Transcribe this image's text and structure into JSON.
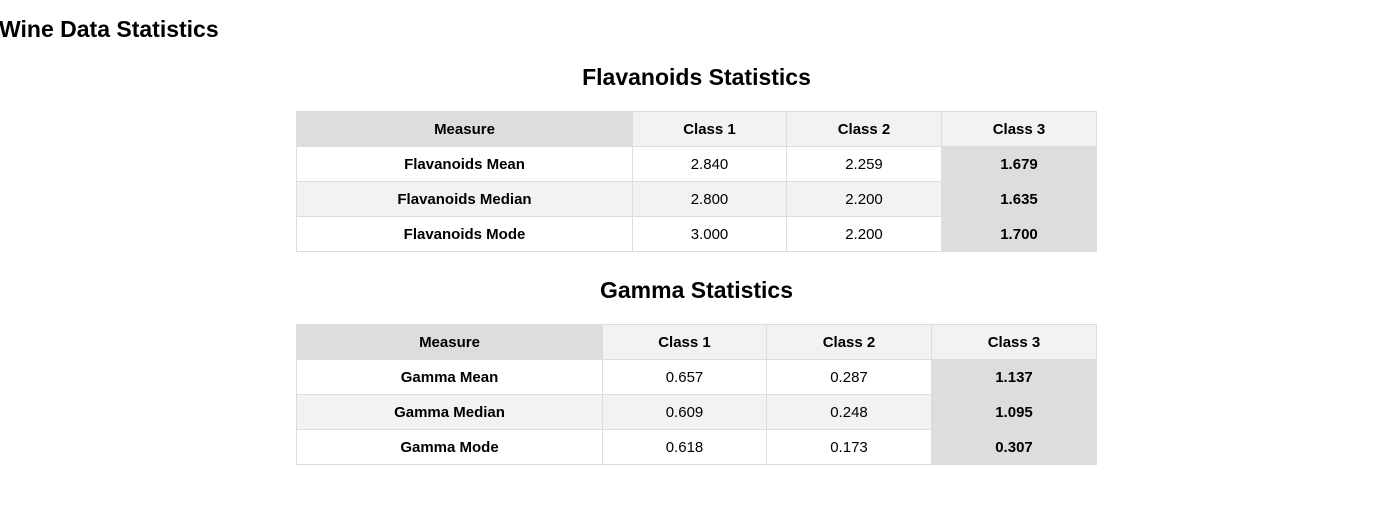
{
  "page_title": "Wine Data Statistics",
  "flavanoids": {
    "title": "Flavanoids Statistics",
    "headers": [
      "Measure",
      "Class 1",
      "Class 2",
      "Class 3"
    ],
    "rows": [
      {
        "measure": "Flavanoids Mean",
        "c1": "2.840",
        "c2": "2.259",
        "c3": "1.679"
      },
      {
        "measure": "Flavanoids Median",
        "c1": "2.800",
        "c2": "2.200",
        "c3": "1.635"
      },
      {
        "measure": "Flavanoids Mode",
        "c1": "3.000",
        "c2": "2.200",
        "c3": "1.700"
      }
    ]
  },
  "gamma": {
    "title": "Gamma Statistics",
    "headers": [
      "Measure",
      "Class 1",
      "Class 2",
      "Class 3"
    ],
    "rows": [
      {
        "measure": "Gamma Mean",
        "c1": "0.657",
        "c2": "0.287",
        "c3": "1.137"
      },
      {
        "measure": "Gamma Median",
        "c1": "0.609",
        "c2": "0.248",
        "c3": "1.095"
      },
      {
        "measure": "Gamma Mode",
        "c1": "0.618",
        "c2": "0.173",
        "c3": "0.307"
      }
    ]
  },
  "colors": {
    "header_bg": "#f2f2f2",
    "measure_header_bg": "#dddddd",
    "highlight_bg": "#dddddd",
    "border": "#dddddd"
  }
}
